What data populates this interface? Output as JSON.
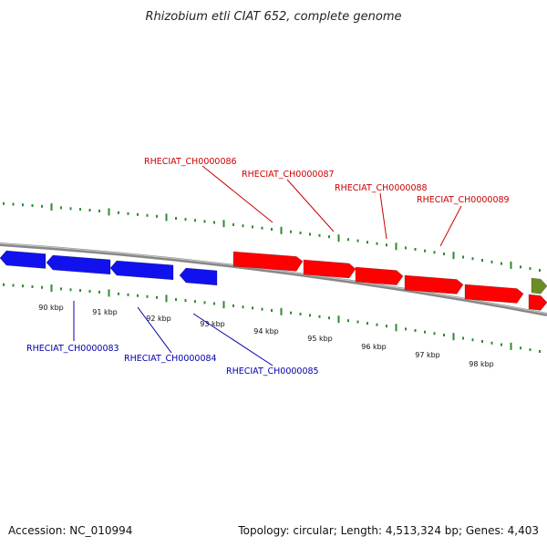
{
  "title": "Rhizobium etli CIAT 652, complete genome",
  "footer": {
    "accession": "Accession: NC_010994",
    "summary": "Topology: circular; Length: 4,513,324 bp; Genes: 4,403"
  },
  "colors": {
    "backbone": "#888888",
    "tick": "#2e8b2e",
    "forward_gene": "#ff0000",
    "reverse_gene": "#1111ee",
    "other_gene": "#6b8e23",
    "forward_label": "#cc0000",
    "reverse_label": "#0000aa"
  },
  "ruler": {
    "labels": [
      "90 kbp",
      "91 kbp",
      "92 kbp",
      "93 kbp",
      "94 kbp",
      "95 kbp",
      "96 kbp",
      "97 kbp",
      "98 kbp"
    ]
  },
  "forward_labels": [
    "RHECIAT_CH0000086",
    "RHECIAT_CH0000087",
    "RHECIAT_CH0000088",
    "RHECIAT_CH0000089"
  ],
  "reverse_labels": [
    "RHECIAT_CH0000083",
    "RHECIAT_CH0000084",
    "RHECIAT_CH0000085"
  ]
}
